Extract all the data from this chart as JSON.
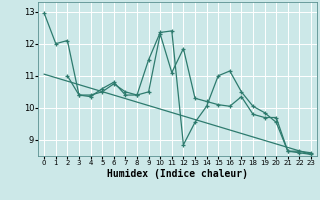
{
  "xlabel": "Humidex (Indice chaleur)",
  "xlim": [
    -0.5,
    23.5
  ],
  "ylim": [
    8.5,
    13.3
  ],
  "yticks": [
    9,
    10,
    11,
    12,
    13
  ],
  "xticks": [
    0,
    1,
    2,
    3,
    4,
    5,
    6,
    7,
    8,
    9,
    10,
    11,
    12,
    13,
    14,
    15,
    16,
    17,
    18,
    19,
    20,
    21,
    22,
    23
  ],
  "line_color": "#2e7b6e",
  "bg_color": "#cce8e8",
  "grid_color": "#ffffff",
  "grid_color_minor": "#e0f0f0",
  "line1_x": [
    0,
    1,
    2,
    3,
    4,
    5,
    6,
    7,
    8,
    9,
    10,
    11,
    12,
    13,
    14,
    15,
    16,
    17,
    18,
    19,
    20,
    21,
    22,
    23
  ],
  "line1_y": [
    12.95,
    12.0,
    12.1,
    10.4,
    10.4,
    10.5,
    10.75,
    10.5,
    10.4,
    10.5,
    12.3,
    11.1,
    11.85,
    10.3,
    10.2,
    10.1,
    10.05,
    10.35,
    9.8,
    9.7,
    9.7,
    8.65,
    8.65,
    8.6
  ],
  "line2_x": [
    2,
    3,
    4,
    5,
    6,
    7,
    8,
    9,
    10,
    11,
    12,
    13,
    14,
    15,
    16,
    17,
    18,
    19,
    20,
    21,
    22,
    23
  ],
  "line2_y": [
    11.0,
    10.4,
    10.35,
    10.6,
    10.8,
    10.4,
    10.4,
    11.5,
    12.35,
    12.4,
    8.85,
    9.55,
    10.05,
    11.0,
    11.15,
    10.5,
    10.05,
    9.85,
    9.55,
    8.65,
    8.6,
    8.55
  ],
  "trend_x": [
    0,
    23
  ],
  "trend_y": [
    11.05,
    8.55
  ]
}
